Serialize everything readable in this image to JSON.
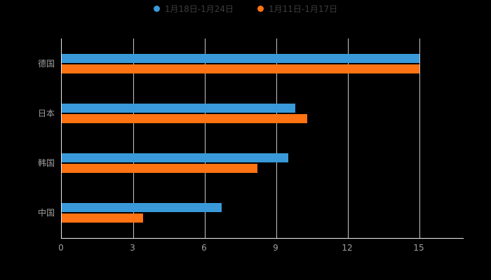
{
  "legend": {
    "items": [
      {
        "label": "1月18日-1月24日",
        "color": "#3A9AD9"
      },
      {
        "label": "1月11日-1月17日",
        "color": "#FF7312"
      }
    ]
  },
  "chart_data": {
    "type": "bar",
    "orientation": "horizontal",
    "title": "",
    "xlabel": "",
    "ylabel": "",
    "categories": [
      "德国",
      "日本",
      "韩国",
      "中国"
    ],
    "series": [
      {
        "name": "1月18日-1月24日",
        "color": "#3A9AD9",
        "values": [
          15,
          9.8,
          9.5,
          6.7
        ]
      },
      {
        "name": "1月11日-1月17日",
        "color": "#FF7312",
        "values": [
          15,
          10.3,
          8.2,
          3.4
        ]
      }
    ],
    "xlim": [
      0,
      15
    ],
    "xticks": [
      0,
      3,
      6,
      9,
      12,
      15
    ],
    "grid": true,
    "legend_position": "top",
    "background": "#000000",
    "grid_color": "#c6c6c6",
    "axis_color": "#ececec",
    "label_color": "#9e9e9e"
  }
}
